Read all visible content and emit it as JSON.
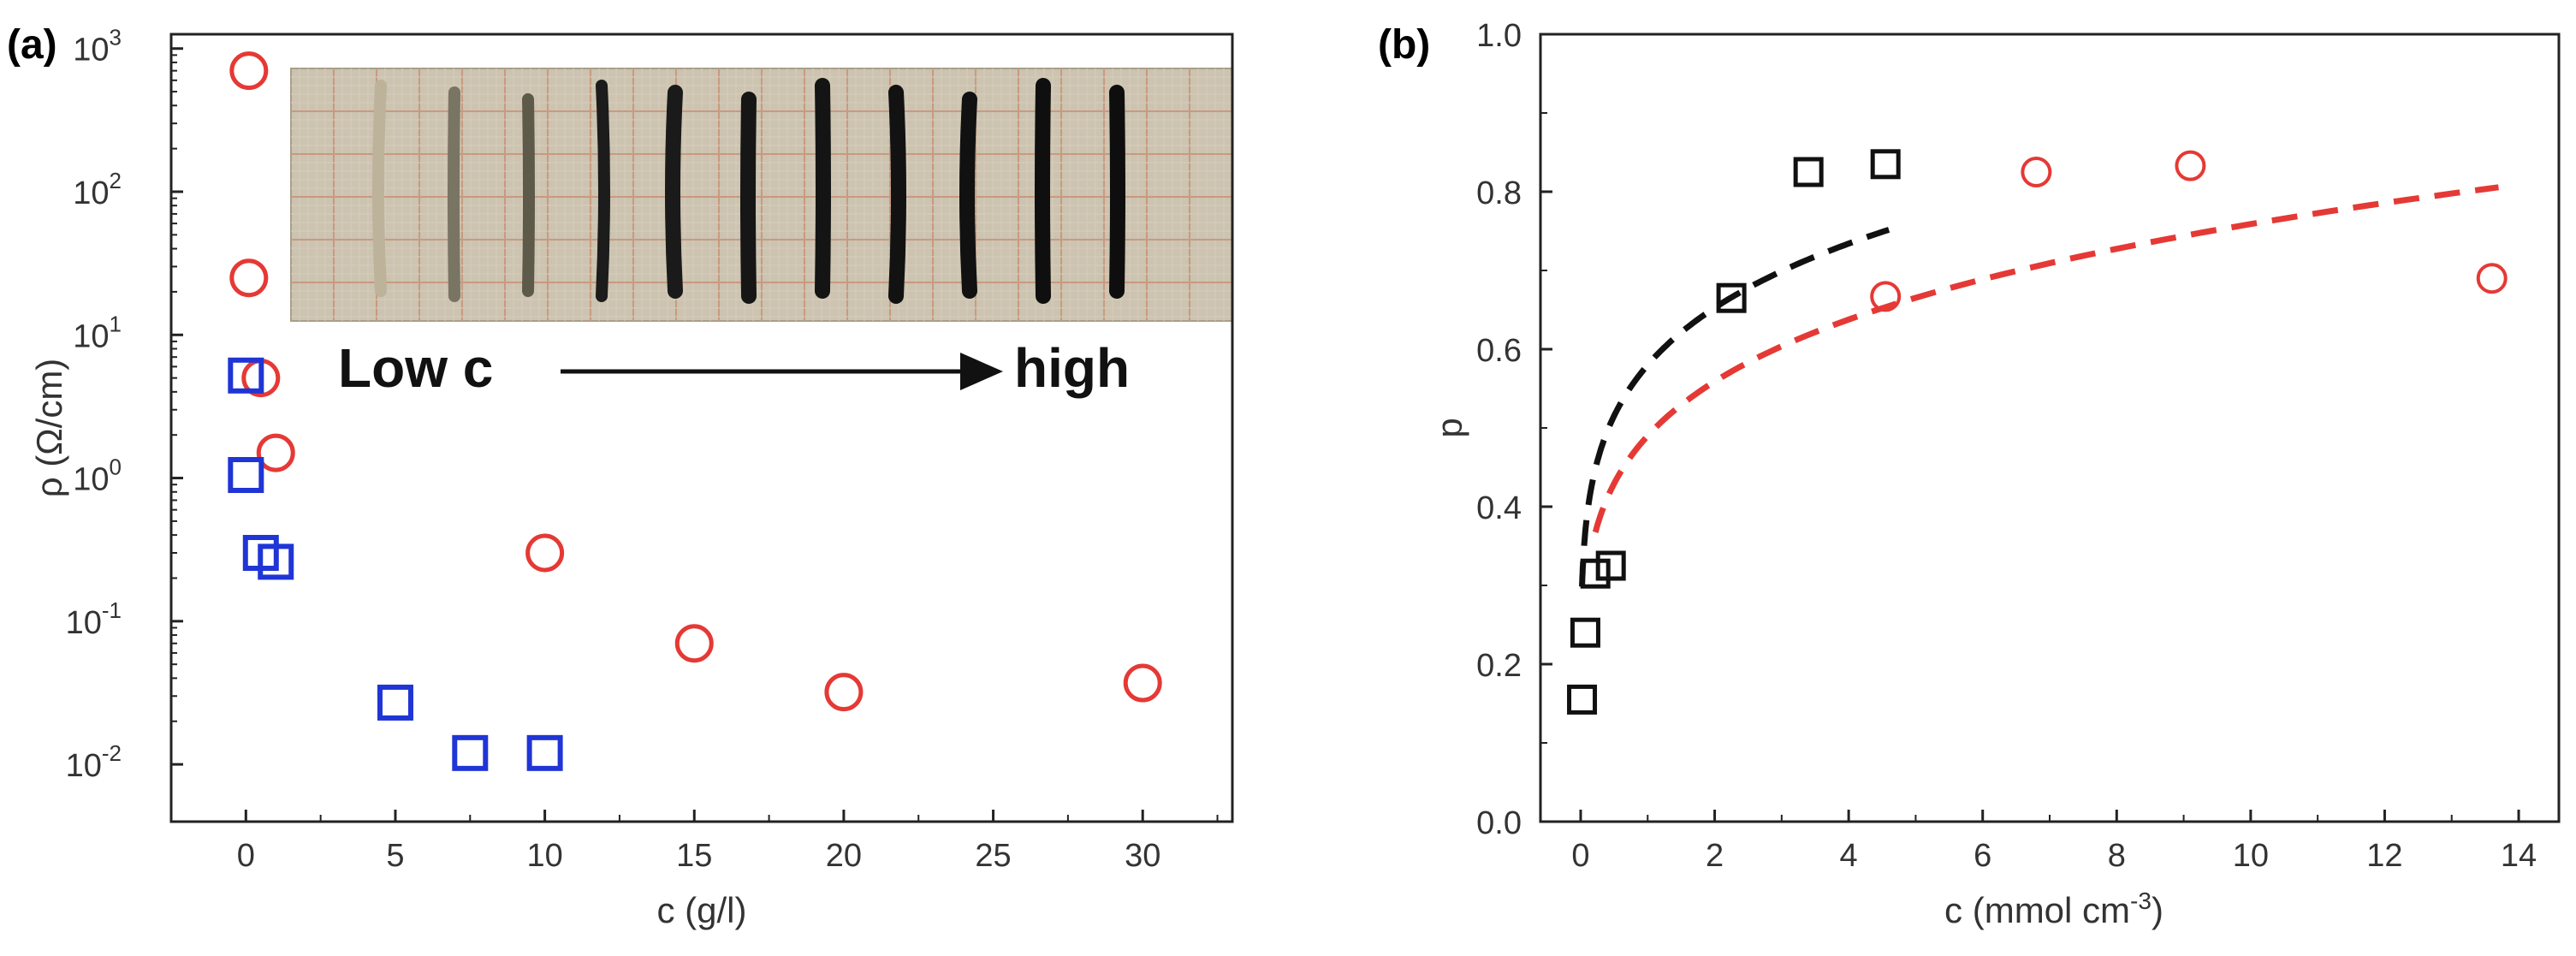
{
  "chart_data": [
    {
      "type": "scatter",
      "panel_label": "(a)",
      "xlabel": "c (g/l)",
      "ylabel": "ρ (Ω/cm)",
      "xlim": [
        -2.5,
        33
      ],
      "ylim_log10": [
        -2.4,
        3.1
      ],
      "yscale": "log",
      "x_ticks": [
        0,
        5,
        10,
        15,
        20,
        25,
        30
      ],
      "y_ticks": [
        {
          "exp": -2,
          "label": "10",
          "sup": "-2"
        },
        {
          "exp": -1,
          "label": "10",
          "sup": "-1"
        },
        {
          "exp": 0,
          "label": "10",
          "sup": "0"
        },
        {
          "exp": 1,
          "label": "10",
          "sup": "1"
        },
        {
          "exp": 2,
          "label": "10",
          "sup": "2"
        },
        {
          "exp": 3,
          "label": "10",
          "sup": "3"
        }
      ],
      "series": [
        {
          "name": "circles",
          "marker": "circle",
          "color": "#e53935",
          "points": [
            [
              0.1,
              700
            ],
            [
              0.1,
              25
            ],
            [
              0.5,
              5
            ],
            [
              1,
              1.5
            ],
            [
              10,
              0.3
            ],
            [
              15,
              0.07
            ],
            [
              20,
              0.032
            ],
            [
              30,
              0.037
            ]
          ]
        },
        {
          "name": "squares",
          "marker": "square",
          "color": "#1f35d6",
          "points": [
            [
              0,
              5.2
            ],
            [
              0,
              1.05
            ],
            [
              0.5,
              0.3
            ],
            [
              1,
              0.26
            ],
            [
              5,
              0.027
            ],
            [
              7.5,
              0.012
            ],
            [
              10,
              0.012
            ]
          ]
        }
      ],
      "inset": {
        "low_label": "Low c",
        "high_label": "high",
        "sample_count": 11
      }
    },
    {
      "type": "scatter",
      "panel_label": "(b)",
      "xlabel": "c (mmol cm",
      "xlabel_sup": "-3",
      "xlabel_end": ")",
      "ylabel": "p",
      "xlim": [
        -0.6,
        14.6
      ],
      "ylim": [
        0.0,
        1.0
      ],
      "x_ticks": [
        0,
        2,
        4,
        6,
        8,
        10,
        12,
        14
      ],
      "y_ticks": [
        0.0,
        0.2,
        0.4,
        0.6,
        0.8,
        1.0
      ],
      "series": [
        {
          "name": "black squares",
          "marker": "square",
          "color": "#111111",
          "points": [
            [
              0.02,
              0.155
            ],
            [
              0.07,
              0.24
            ],
            [
              0.22,
              0.315
            ],
            [
              0.45,
              0.325
            ],
            [
              2.25,
              0.665
            ],
            [
              3.4,
              0.825
            ],
            [
              4.55,
              0.835
            ]
          ]
        },
        {
          "name": "red circles",
          "marker": "circle",
          "color": "#e53935",
          "points": [
            [
              4.55,
              0.667
            ],
            [
              6.8,
              0.825
            ],
            [
              9.1,
              0.833
            ],
            [
              13.6,
              0.69
            ]
          ]
        }
      ],
      "fits": [
        {
          "name": "black dashed fit",
          "color": "#111111",
          "x": [
            0.02,
            4.6
          ],
          "power": [
            0.58,
            0.17
          ]
        },
        {
          "name": "red dashed fit",
          "color": "#e53935",
          "x": [
            0.22,
            13.7
          ],
          "power": [
            0.49,
            0.19
          ]
        }
      ]
    }
  ]
}
